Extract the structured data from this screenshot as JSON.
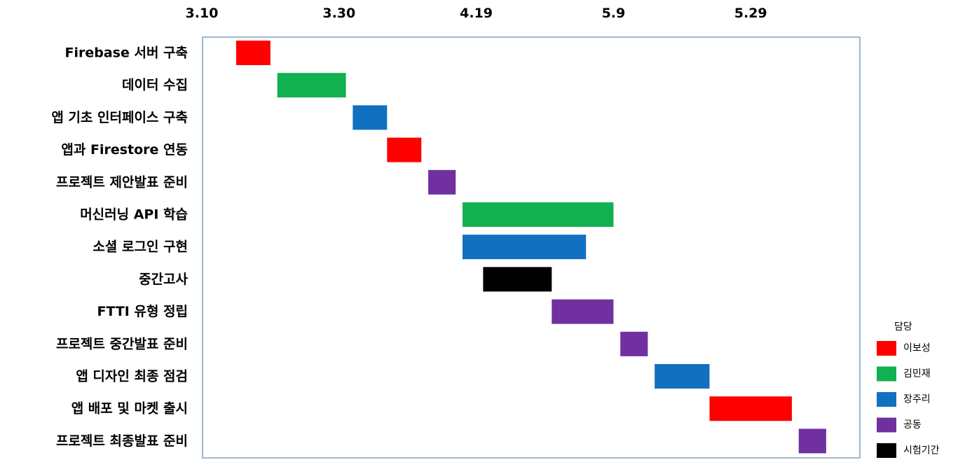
{
  "chart_data": {
    "type": "gantt",
    "x_axis": {
      "position": "top",
      "ticks": [
        "3.10",
        "3.30",
        "4.19",
        "5.9",
        "5.29"
      ]
    },
    "grid": false,
    "legend": {
      "title": "담당",
      "placement": "right",
      "entries": [
        {
          "name": "이보성",
          "color": "#ff0000"
        },
        {
          "name": "김민재",
          "color": "#11b050"
        },
        {
          "name": "장주리",
          "color": "#1170c0"
        },
        {
          "name": "공동",
          "color": "#7030a0"
        },
        {
          "name": "시험기간",
          "color": "#000000"
        }
      ]
    },
    "tasks": [
      {
        "label": "Firebase 서버 구축",
        "owner": "이보성",
        "start": "3.15",
        "end": "3.20"
      },
      {
        "label": "데이터 수집",
        "owner": "김민재",
        "start": "3.21",
        "end": "3.31"
      },
      {
        "label": "앱 기초 인터페이스 구축",
        "owner": "장주리",
        "start": "4.1",
        "end": "4.6"
      },
      {
        "label": "앱과 Firestore 연동",
        "owner": "이보성",
        "start": "4.6",
        "end": "4.11"
      },
      {
        "label": "프로젝트 제안발표 준비",
        "owner": "공동",
        "start": "4.12",
        "end": "4.16"
      },
      {
        "label": "머신러닝 API 학습",
        "owner": "김민재",
        "start": "4.17",
        "end": "5.9"
      },
      {
        "label": "소셜 로그인 구현",
        "owner": "장주리",
        "start": "4.17",
        "end": "5.5"
      },
      {
        "label": "중간고사",
        "owner": "시험기간",
        "start": "4.20",
        "end": "4.30"
      },
      {
        "label": "FTTI 유형 정립",
        "owner": "공동",
        "start": "4.30",
        "end": "5.9"
      },
      {
        "label": "프로젝트 중간발표 준비",
        "owner": "공동",
        "start": "5.10",
        "end": "5.14"
      },
      {
        "label": "앱 디자인 최종 점검",
        "owner": "장주리",
        "start": "5.15",
        "end": "5.23"
      },
      {
        "label": "앱 배포 및 마켓 출시",
        "owner": "이보성",
        "start": "5.23",
        "end": "6.4"
      },
      {
        "label": "프로젝트 최종발표 준비",
        "owner": "공동",
        "start": "6.5",
        "end": "6.9"
      }
    ]
  }
}
